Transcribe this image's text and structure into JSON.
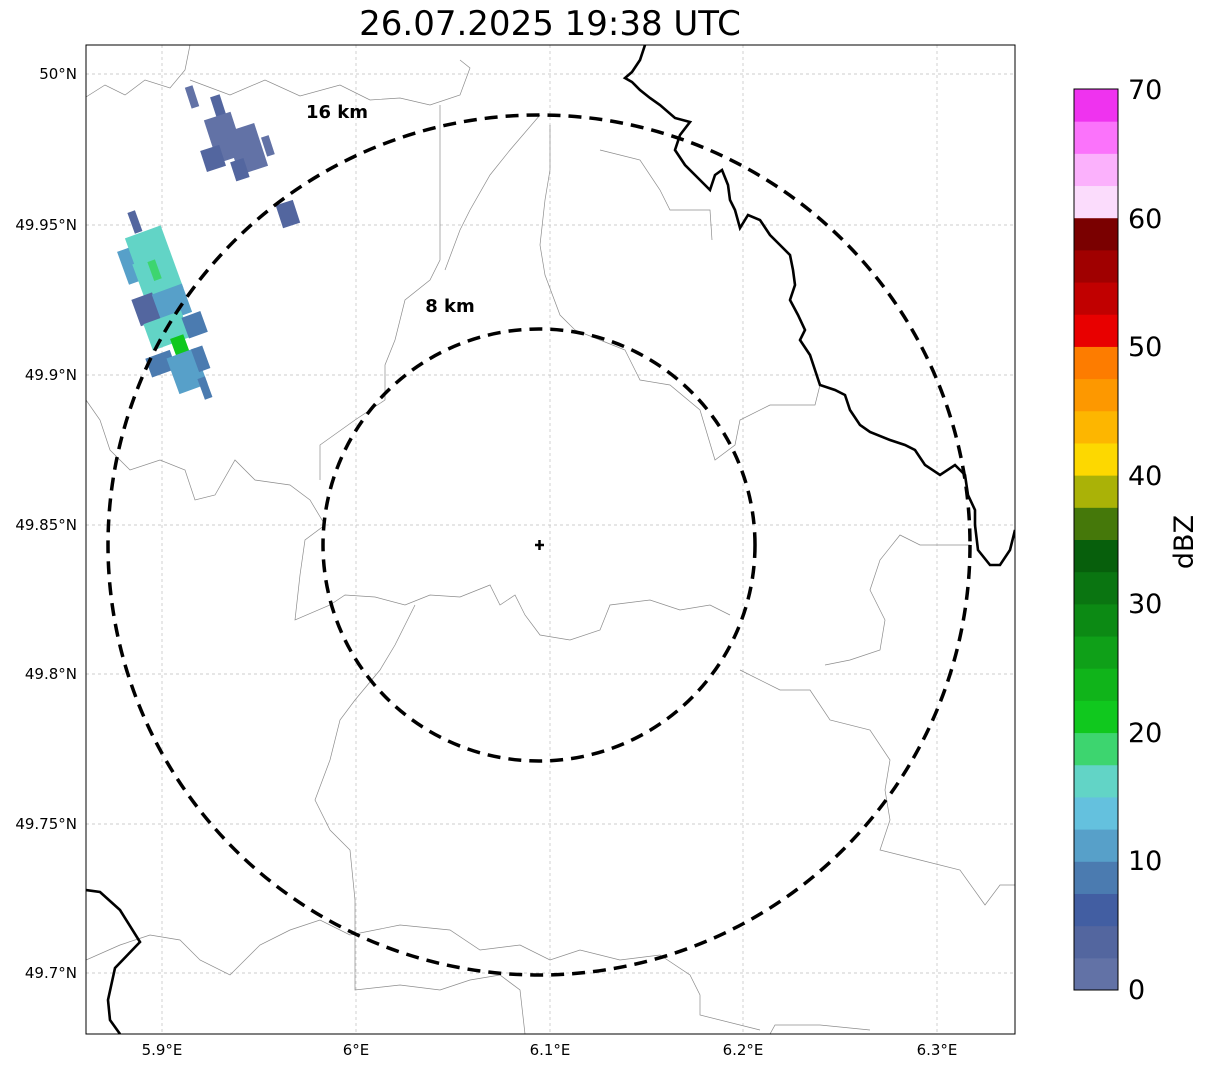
{
  "title": "26.07.2025 19:38 UTC",
  "map": {
    "lon_ticks": [
      "5.9°E",
      "6°E",
      "6.1°E",
      "6.2°E",
      "6.3°E"
    ],
    "lat_ticks": [
      "50°N",
      "49.95°N",
      "49.9°N",
      "49.85°N",
      "49.8°N",
      "49.75°N",
      "49.7°N"
    ],
    "rings": [
      {
        "label": "16 km",
        "radius_km": 16
      },
      {
        "label": "8 km",
        "radius_km": 8
      }
    ],
    "radar_site_marker": "plus-icon"
  },
  "colorbar": {
    "unit": "dBZ",
    "ticks": [
      "0",
      "10",
      "20",
      "30",
      "40",
      "50",
      "60",
      "70"
    ],
    "levels_min": 0,
    "levels_max": 70,
    "colors": [
      "#6272a6",
      "#53669f",
      "#425ea2",
      "#4b7bb0",
      "#57a0c9",
      "#64c1de",
      "#62d4c6",
      "#3dd56f",
      "#10c81e",
      "#10b41a",
      "#0fa018",
      "#0c8a14",
      "#0a7511",
      "#075f0c",
      "#45780a",
      "#aab207",
      "#fdd800",
      "#fdb600",
      "#fd9800",
      "#fd7c00",
      "#e80000",
      "#c10000",
      "#a00000",
      "#7a0000",
      "#fbdcfc",
      "#fbb1fc",
      "#fb73fb",
      "#ef33ef"
    ]
  }
}
